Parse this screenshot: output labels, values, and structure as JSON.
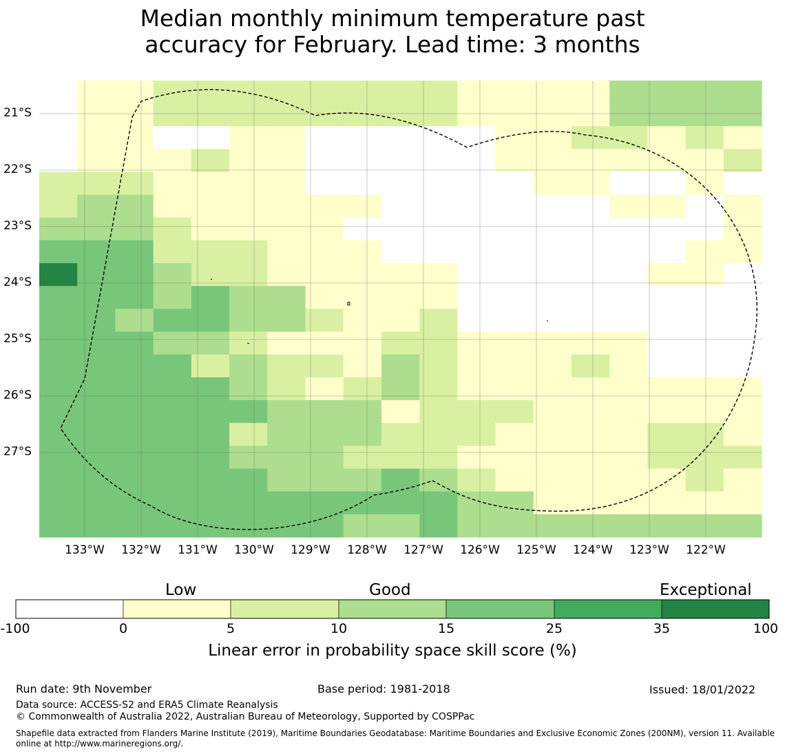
{
  "title": {
    "line1": "Median monthly minimum temperature past",
    "line2": "accuracy for February. Lead time: 3 months"
  },
  "map": {
    "lat_labels": [
      "21°S",
      "22°S",
      "23°S",
      "24°S",
      "25°S",
      "26°S",
      "27°S"
    ],
    "lon_labels": [
      "133°W",
      "132°W",
      "131°W",
      "130°W",
      "129°W",
      "128°W",
      "127°W",
      "126°W",
      "125°W",
      "124°W",
      "123°W",
      "122°W"
    ],
    "grid_cell_categories": [
      "0112222222211113333",
      "0112222222211113333",
      "0110011000001122121",
      "0111211000001111112",
      "2221111000000110010",
      "2331111110000001101",
      "3332111100000000001",
      "4442221110000000011",
      "6443221111100000110",
      "4443433111100000000",
      "4434433211200000000",
      "4443321112211111000",
      "4444232213211121000",
      "4444432123211111111",
      "4444443331222111111",
      "4444423332221111221",
      "4444433322211111222",
      "4444443334321111121",
      "4444444444433111111",
      "4444444433433333333"
    ]
  },
  "colorbar": {
    "categories": [
      "Low",
      "Good",
      "Exceptional"
    ],
    "ticks": [
      "-100",
      "0",
      "5",
      "10",
      "15",
      "25",
      "35",
      "100"
    ],
    "colors": [
      "#ffffff",
      "#ffffcc",
      "#d9f0a3",
      "#addd8e",
      "#78c679",
      "#41ab5d",
      "#238443"
    ],
    "title": "Linear error in probability space skill score (%)"
  },
  "footer": {
    "run_date": "Run date: 9th November",
    "base_period": "Base period: 1981-2018",
    "issued": "Issued: 18/01/2022",
    "data_source": "Data source: ACCESS-S2 and ERA5 Climate Reanalysis",
    "copyright": "© Commonwealth of Australia 2022, Australian Bureau of Meteorology, Supported by COSPPac",
    "shapefile_line1": "Shapefile data extracted from Flanders Marine Institute (2019), Maritime Boundaries Geodatabase: Maritime Boundaries and Exclusive Economic Zones (200NM), version 11. Available",
    "shapefile_line2": "online at http://www.marineregions.org/."
  }
}
